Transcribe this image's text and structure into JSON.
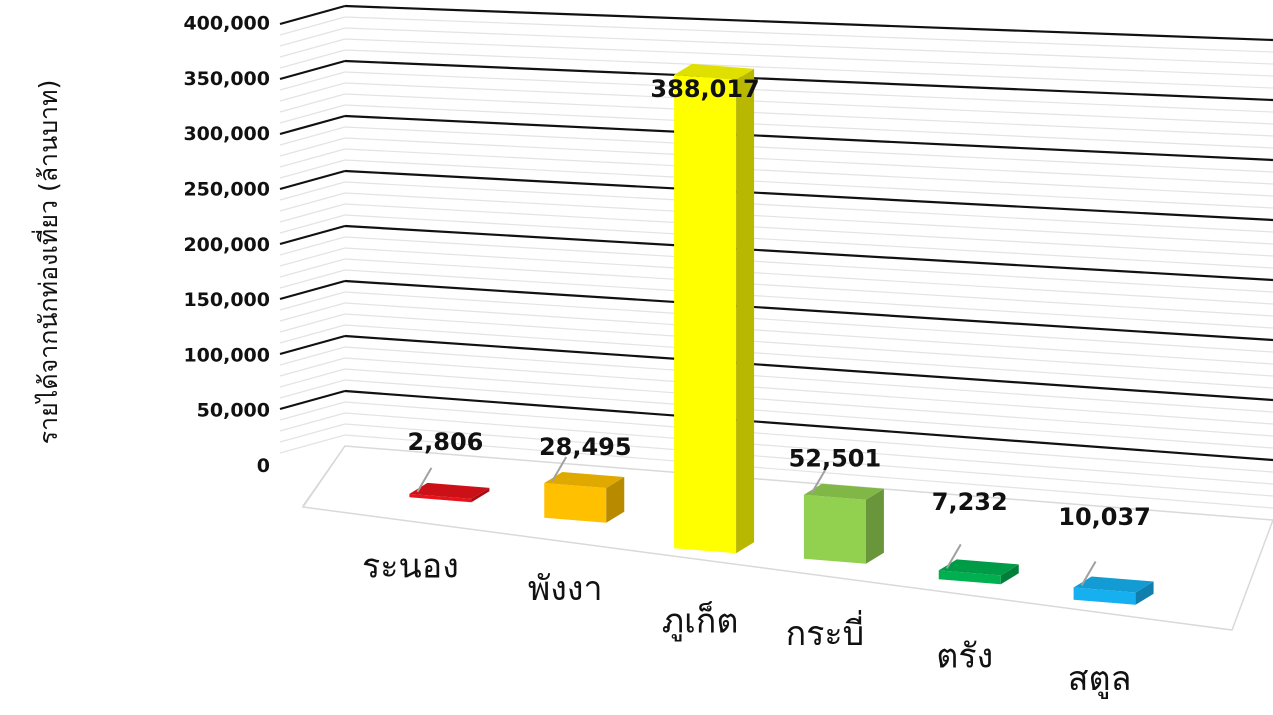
{
  "chart_data": {
    "type": "bar",
    "title": "",
    "xlabel": "",
    "ylabel": "รายได้จากนักท่องเที่ยว (ล้านบาท)",
    "categories": [
      "ระนอง",
      "พังงา",
      "ภูเก็ต",
      "กระบี่",
      "ตรัง",
      "สตูล"
    ],
    "values": [
      2806,
      28495,
      388017,
      52501,
      7232,
      10037
    ],
    "value_labels": [
      "2,806",
      "28,495",
      "388,017",
      "52,501",
      "7,232",
      "10,037"
    ],
    "colors": [
      "#e8121b",
      "#ffc000",
      "#ffff00",
      "#92d050",
      "#00b050",
      "#16b0f0"
    ],
    "y_ticks": [
      "0",
      "50,000",
      "100,000",
      "150,000",
      "200,000",
      "250,000",
      "300,000",
      "350,000",
      "400,000"
    ],
    "ylim": [
      0,
      400000
    ],
    "grid": true,
    "style": "3d-perspective"
  }
}
